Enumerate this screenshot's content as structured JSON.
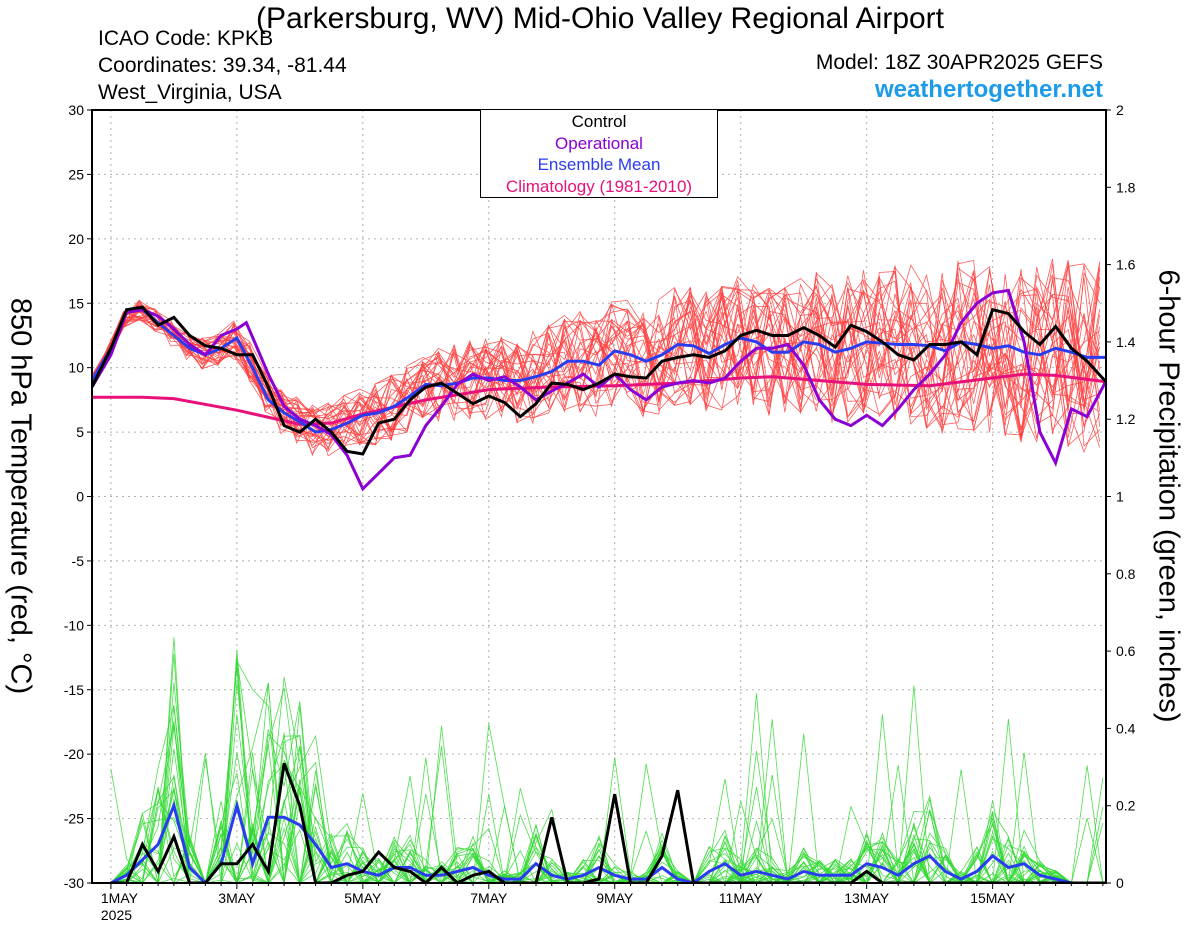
{
  "header": {
    "title": "(Parkersburg, WV) Mid-Ohio Valley Regional Airport",
    "icao": "ICAO Code: KPKB",
    "coords": "Coordinates: 39.34, -81.44",
    "region": "West_Virginia, USA",
    "model": "Model: 18Z 30APR2025 GEFS",
    "site": "weathertogether.net"
  },
  "legend": {
    "items": [
      {
        "label": "Control",
        "color": "#000000"
      },
      {
        "label": "Operational",
        "color": "#8a00d4"
      },
      {
        "label": "Ensemble Mean",
        "color": "#2a3cf0"
      },
      {
        "label": "Climatology (1981-2010)",
        "color": "#e8107a"
      }
    ]
  },
  "axes": {
    "left_label": "850 hPa Temperature (red, °C)",
    "right_label": "6-hour Precipitation (green, inches)"
  },
  "chart_data": {
    "type": "line",
    "x_unit": "days since 1MAY 00Z",
    "xlim": [
      -0.3,
      15.8
    ],
    "x_ticks": [
      {
        "day": 0,
        "label": "1MAY",
        "sub": "2025"
      },
      {
        "day": 2,
        "label": "3MAY",
        "sub": ""
      },
      {
        "day": 4,
        "label": "5MAY",
        "sub": ""
      },
      {
        "day": 6,
        "label": "7MAY",
        "sub": ""
      },
      {
        "day": 8,
        "label": "9MAY",
        "sub": ""
      },
      {
        "day": 10,
        "label": "11MAY",
        "sub": ""
      },
      {
        "day": 12,
        "label": "13MAY",
        "sub": ""
      },
      {
        "day": 14,
        "label": "15MAY",
        "sub": ""
      }
    ],
    "left_ylim": [
      -30,
      30
    ],
    "left_ticks": [
      30,
      25,
      20,
      15,
      10,
      5,
      0,
      -5,
      -10,
      -15,
      -20,
      -25,
      -30
    ],
    "right_ylim": [
      0,
      2
    ],
    "right_ticks": [
      "2",
      "1.8",
      "1.6",
      "1.4",
      "1.2",
      "1",
      "0.8",
      "0.6",
      "0.4",
      "0.2",
      "0"
    ],
    "grid": true,
    "colors": {
      "members_temp": "#ff4040",
      "members_precip": "#30d830",
      "control": "#000000",
      "operational": "#8a00d4",
      "mean": "#2a3cf0",
      "climatology": "#e8107a"
    },
    "temperature": {
      "climatology": [
        [
          -0.3,
          7.7
        ],
        [
          0.5,
          7.7
        ],
        [
          1,
          7.6
        ],
        [
          2,
          6.7
        ],
        [
          3,
          5.6
        ],
        [
          3.5,
          5.7
        ],
        [
          4,
          6.4
        ],
        [
          5,
          7.5
        ],
        [
          6,
          8.3
        ],
        [
          7,
          8.5
        ],
        [
          8,
          8.6
        ],
        [
          9,
          8.8
        ],
        [
          10,
          9.2
        ],
        [
          10.5,
          9.3
        ],
        [
          11,
          9.1
        ],
        [
          12,
          8.7
        ],
        [
          13,
          8.6
        ],
        [
          14,
          9.2
        ],
        [
          14.5,
          9.5
        ],
        [
          15,
          9.4
        ],
        [
          15.8,
          8.9
        ]
      ],
      "control": [
        [
          -0.3,
          8.5
        ],
        [
          0,
          11.5
        ],
        [
          0.25,
          14.5
        ],
        [
          0.5,
          14.7
        ],
        [
          0.75,
          13.3
        ],
        [
          1,
          13.9
        ],
        [
          1.25,
          12.5
        ],
        [
          1.5,
          11.7
        ],
        [
          1.75,
          11.5
        ],
        [
          2,
          11
        ],
        [
          2.25,
          11
        ],
        [
          2.5,
          8.5
        ],
        [
          2.75,
          5.5
        ],
        [
          3,
          5
        ],
        [
          3.25,
          6
        ],
        [
          3.5,
          5
        ],
        [
          3.75,
          3.5
        ],
        [
          4,
          3.3
        ],
        [
          4.25,
          5.7
        ],
        [
          4.5,
          6
        ],
        [
          4.75,
          7.5
        ],
        [
          5,
          8.5
        ],
        [
          5.25,
          8.8
        ],
        [
          5.5,
          8
        ],
        [
          5.75,
          7.2
        ],
        [
          6,
          7.8
        ],
        [
          6.25,
          7.3
        ],
        [
          6.5,
          6.2
        ],
        [
          6.75,
          7.2
        ],
        [
          7,
          8.8
        ],
        [
          7.25,
          8.7
        ],
        [
          7.5,
          8.3
        ],
        [
          7.75,
          8.8
        ],
        [
          8,
          9.5
        ],
        [
          8.25,
          9.3
        ],
        [
          8.5,
          9.2
        ],
        [
          8.75,
          10.5
        ],
        [
          9,
          10.8
        ],
        [
          9.25,
          11
        ],
        [
          9.5,
          10.8
        ],
        [
          9.75,
          11.3
        ],
        [
          10,
          12.5
        ],
        [
          10.25,
          12.9
        ],
        [
          10.5,
          12.5
        ],
        [
          10.75,
          12.5
        ],
        [
          11,
          13.1
        ],
        [
          11.25,
          12.5
        ],
        [
          11.5,
          11.6
        ],
        [
          11.75,
          13.3
        ],
        [
          12,
          12.8
        ],
        [
          12.25,
          12
        ],
        [
          12.5,
          11
        ],
        [
          12.75,
          10.6
        ],
        [
          13,
          11.8
        ],
        [
          13.25,
          11.8
        ],
        [
          13.5,
          12
        ],
        [
          13.75,
          11
        ],
        [
          14,
          14.5
        ],
        [
          14.25,
          14.2
        ],
        [
          14.5,
          12.8
        ],
        [
          14.75,
          11.8
        ],
        [
          15,
          13.2
        ],
        [
          15.25,
          11.5
        ],
        [
          15.5,
          10.5
        ],
        [
          15.8,
          8.9
        ]
      ],
      "operational": [
        [
          -0.3,
          8.5
        ],
        [
          0,
          11
        ],
        [
          0.25,
          14.3
        ],
        [
          0.5,
          14.5
        ],
        [
          0.75,
          14
        ],
        [
          1,
          13
        ],
        [
          1.25,
          11.8
        ],
        [
          1.5,
          11
        ],
        [
          1.75,
          12.5
        ],
        [
          2,
          13
        ],
        [
          2.15,
          13.5
        ],
        [
          2.5,
          9.5
        ],
        [
          2.75,
          7
        ],
        [
          3,
          6
        ],
        [
          3.25,
          5.5
        ],
        [
          3.5,
          4.8
        ],
        [
          3.75,
          3.2
        ],
        [
          4,
          0.6
        ],
        [
          4.25,
          1.8
        ],
        [
          4.5,
          3
        ],
        [
          4.75,
          3.2
        ],
        [
          5,
          5.5
        ],
        [
          5.25,
          7
        ],
        [
          5.5,
          8.7
        ],
        [
          5.75,
          9.5
        ],
        [
          6,
          9
        ],
        [
          6.25,
          9.3
        ],
        [
          6.5,
          8.5
        ],
        [
          6.75,
          7.5
        ],
        [
          7,
          8.2
        ],
        [
          7.25,
          8.8
        ],
        [
          7.5,
          9.5
        ],
        [
          7.75,
          8.5
        ],
        [
          8,
          9.5
        ],
        [
          8.25,
          8.3
        ],
        [
          8.5,
          7.5
        ],
        [
          8.75,
          8.5
        ],
        [
          9,
          8.8
        ],
        [
          9.25,
          9
        ],
        [
          9.5,
          8.8
        ],
        [
          9.75,
          9.2
        ],
        [
          10,
          10.5
        ],
        [
          10.25,
          11.5
        ],
        [
          10.5,
          11.5
        ],
        [
          10.75,
          11.8
        ],
        [
          11,
          10.2
        ],
        [
          11.25,
          7.5
        ],
        [
          11.5,
          6
        ],
        [
          11.75,
          5.5
        ],
        [
          12,
          6.3
        ],
        [
          12.25,
          5.5
        ],
        [
          12.5,
          6.8
        ],
        [
          12.75,
          8.3
        ],
        [
          13,
          9.5
        ],
        [
          13.25,
          11
        ],
        [
          13.5,
          13.5
        ],
        [
          13.75,
          15
        ],
        [
          14,
          15.8
        ],
        [
          14.25,
          16
        ],
        [
          14.5,
          12
        ],
        [
          14.75,
          5
        ],
        [
          15,
          2.6
        ],
        [
          15.25,
          6.8
        ],
        [
          15.5,
          6.2
        ],
        [
          15.75,
          8.5
        ],
        [
          15.8,
          9
        ]
      ],
      "mean": [
        [
          -0.3,
          9
        ],
        [
          0,
          11.5
        ],
        [
          0.25,
          14.3
        ],
        [
          0.5,
          14.5
        ],
        [
          0.75,
          13.5
        ],
        [
          1,
          12.5
        ],
        [
          1.25,
          11.5
        ],
        [
          1.5,
          11
        ],
        [
          1.75,
          11.5
        ],
        [
          2,
          12.3
        ],
        [
          2.25,
          10
        ],
        [
          2.5,
          7.5
        ],
        [
          2.75,
          6.5
        ],
        [
          3,
          5.8
        ],
        [
          3.25,
          5
        ],
        [
          3.5,
          5.2
        ],
        [
          3.75,
          5.7
        ],
        [
          4,
          6.3
        ],
        [
          4.25,
          6.5
        ],
        [
          4.5,
          7
        ],
        [
          4.75,
          7.8
        ],
        [
          5,
          8.7
        ],
        [
          5.25,
          8.6
        ],
        [
          5.5,
          8.8
        ],
        [
          5.75,
          9.2
        ],
        [
          6,
          9.2
        ],
        [
          6.25,
          9
        ],
        [
          6.5,
          9
        ],
        [
          6.75,
          9.3
        ],
        [
          7,
          9.7
        ],
        [
          7.25,
          10.5
        ],
        [
          7.5,
          10.5
        ],
        [
          7.75,
          10.2
        ],
        [
          8,
          11.3
        ],
        [
          8.25,
          11
        ],
        [
          8.5,
          10.5
        ],
        [
          8.75,
          11
        ],
        [
          9,
          11.8
        ],
        [
          9.25,
          11.7
        ],
        [
          9.5,
          11.1
        ],
        [
          9.75,
          11.8
        ],
        [
          10,
          12.3
        ],
        [
          10.25,
          12
        ],
        [
          10.5,
          11.2
        ],
        [
          10.75,
          11.2
        ],
        [
          11,
          12
        ],
        [
          11.25,
          11.8
        ],
        [
          11.5,
          11.2
        ],
        [
          11.75,
          11.5
        ],
        [
          12,
          12
        ],
        [
          12.25,
          11.9
        ],
        [
          12.5,
          11.8
        ],
        [
          12.75,
          11.8
        ],
        [
          13,
          11.7
        ],
        [
          13.25,
          11.3
        ],
        [
          13.5,
          12
        ],
        [
          13.75,
          11.8
        ],
        [
          14,
          11.5
        ],
        [
          14.25,
          11.7
        ],
        [
          14.5,
          11.2
        ],
        [
          14.75,
          11
        ],
        [
          15,
          11.5
        ],
        [
          15.25,
          11.2
        ],
        [
          15.5,
          10.8
        ],
        [
          15.8,
          10.8
        ]
      ]
    },
    "precipitation": {
      "control": [
        [
          0,
          0
        ],
        [
          0.25,
          0
        ],
        [
          0.5,
          0.1
        ],
        [
          0.75,
          0.03
        ],
        [
          1,
          0.12
        ],
        [
          1.25,
          0
        ],
        [
          1.5,
          0
        ],
        [
          1.75,
          0.05
        ],
        [
          2,
          0.05
        ],
        [
          2.25,
          0.1
        ],
        [
          2.5,
          0.03
        ],
        [
          2.75,
          0.31
        ],
        [
          3,
          0.2
        ],
        [
          3.25,
          0
        ],
        [
          3.5,
          0
        ],
        [
          3.75,
          0.02
        ],
        [
          4,
          0.03
        ],
        [
          4.25,
          0.08
        ],
        [
          4.5,
          0.04
        ],
        [
          4.75,
          0.03
        ],
        [
          5,
          0
        ],
        [
          5.25,
          0.04
        ],
        [
          5.5,
          0
        ],
        [
          5.75,
          0.02
        ],
        [
          6,
          0.03
        ],
        [
          6.25,
          0
        ],
        [
          6.5,
          0
        ],
        [
          6.75,
          0
        ],
        [
          7,
          0.17
        ],
        [
          7.25,
          0
        ],
        [
          7.5,
          0
        ],
        [
          7.75,
          0.01
        ],
        [
          8,
          0.23
        ],
        [
          8.25,
          0
        ],
        [
          8.5,
          0
        ],
        [
          8.75,
          0.07
        ],
        [
          9,
          0.24
        ],
        [
          9.25,
          0
        ],
        [
          9.5,
          0
        ],
        [
          9.75,
          0
        ],
        [
          10,
          0
        ],
        [
          10.25,
          0
        ],
        [
          10.5,
          0
        ],
        [
          10.75,
          0
        ],
        [
          11,
          0
        ],
        [
          11.25,
          0
        ],
        [
          11.5,
          0
        ],
        [
          11.75,
          0
        ],
        [
          12,
          0.03
        ],
        [
          12.25,
          0
        ],
        [
          12.5,
          0
        ],
        [
          12.75,
          0
        ],
        [
          13,
          0
        ],
        [
          13.25,
          0
        ],
        [
          13.5,
          0
        ],
        [
          13.75,
          0
        ],
        [
          14,
          0
        ],
        [
          14.25,
          0
        ],
        [
          14.5,
          0
        ],
        [
          14.75,
          0
        ],
        [
          15,
          0
        ],
        [
          15.25,
          0
        ],
        [
          15.5,
          0
        ],
        [
          15.8,
          0
        ]
      ],
      "mean": [
        [
          0,
          0
        ],
        [
          0.25,
          0.02
        ],
        [
          0.5,
          0.06
        ],
        [
          0.75,
          0.1
        ],
        [
          1,
          0.2
        ],
        [
          1.25,
          0.04
        ],
        [
          1.5,
          0
        ],
        [
          1.75,
          0.05
        ],
        [
          2,
          0.2
        ],
        [
          2.25,
          0.05
        ],
        [
          2.5,
          0.17
        ],
        [
          2.75,
          0.17
        ],
        [
          3,
          0.15
        ],
        [
          3.25,
          0.1
        ],
        [
          3.5,
          0.04
        ],
        [
          3.75,
          0.05
        ],
        [
          4,
          0.03
        ],
        [
          4.25,
          0.02
        ],
        [
          4.5,
          0.04
        ],
        [
          4.75,
          0.04
        ],
        [
          5,
          0.02
        ],
        [
          5.25,
          0.02
        ],
        [
          5.5,
          0.03
        ],
        [
          5.75,
          0.04
        ],
        [
          6,
          0.02
        ],
        [
          6.25,
          0.01
        ],
        [
          6.5,
          0.01
        ],
        [
          6.75,
          0.05
        ],
        [
          7,
          0.02
        ],
        [
          7.25,
          0.01
        ],
        [
          7.5,
          0.02
        ],
        [
          7.75,
          0.04
        ],
        [
          8,
          0.02
        ],
        [
          8.25,
          0.01
        ],
        [
          8.5,
          0.01
        ],
        [
          8.75,
          0.04
        ],
        [
          9,
          0.01
        ],
        [
          9.25,
          0
        ],
        [
          9.5,
          0.03
        ],
        [
          9.75,
          0.05
        ],
        [
          10,
          0.02
        ],
        [
          10.25,
          0.03
        ],
        [
          10.5,
          0.02
        ],
        [
          10.75,
          0.01
        ],
        [
          11,
          0.03
        ],
        [
          11.25,
          0.02
        ],
        [
          11.5,
          0.02
        ],
        [
          11.75,
          0.02
        ],
        [
          12,
          0.05
        ],
        [
          12.25,
          0.04
        ],
        [
          12.5,
          0.02
        ],
        [
          12.75,
          0.05
        ],
        [
          13,
          0.07
        ],
        [
          13.25,
          0.03
        ],
        [
          13.5,
          0.01
        ],
        [
          13.75,
          0.03
        ],
        [
          14,
          0.07
        ],
        [
          14.25,
          0.04
        ],
        [
          14.5,
          0.05
        ],
        [
          14.75,
          0.02
        ],
        [
          15,
          0.01
        ],
        [
          15.25,
          0
        ],
        [
          15.5,
          0
        ],
        [
          15.8,
          0
        ]
      ]
    }
  }
}
